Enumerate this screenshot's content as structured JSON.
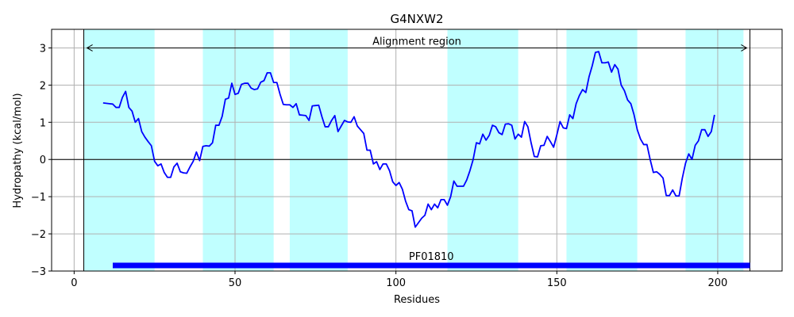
{
  "chart_data": {
    "type": "line",
    "title": "G4NXW2",
    "xlabel": "Residues",
    "ylabel": "Hydropathy (kcal/mol)",
    "xlim": [
      -7,
      220
    ],
    "ylim": [
      -3,
      3.5
    ],
    "xticks": [
      0,
      50,
      100,
      150,
      200
    ],
    "yticks": [
      -3,
      -2,
      -1,
      0,
      1,
      2,
      3
    ],
    "grid": true,
    "colors": {
      "line": "#0000ff",
      "band": "#c0ffff",
      "domain_bar": "#0000ff",
      "grid": "#b0b0b0"
    },
    "series": [
      {
        "x": [
          9,
          10,
          11,
          12,
          13,
          14,
          15,
          16,
          17,
          18,
          19,
          20,
          21,
          22,
          23,
          24,
          25,
          26,
          27,
          28,
          29,
          30,
          31,
          32,
          33,
          34,
          35,
          36,
          37,
          38,
          39,
          40,
          41,
          42,
          43,
          44,
          45,
          46,
          47,
          48,
          49,
          50,
          51,
          52,
          53,
          54,
          55,
          56,
          57,
          58,
          59,
          60,
          61,
          62,
          63,
          64,
          65,
          66,
          67,
          68,
          69,
          70,
          71,
          72,
          73,
          74,
          75,
          76,
          77,
          78,
          79,
          80,
          81,
          82,
          83,
          84,
          85,
          86,
          87,
          88,
          89,
          90,
          91,
          92,
          93,
          94,
          95,
          96,
          97,
          98,
          99,
          100,
          101,
          102,
          103,
          104,
          105,
          106,
          107,
          108,
          109,
          110,
          111,
          112,
          113,
          114,
          115,
          116,
          117,
          118,
          119,
          120,
          121,
          122,
          123,
          124,
          125,
          126,
          127,
          128,
          129,
          130,
          131,
          132,
          133,
          134,
          135,
          136,
          137,
          138,
          139,
          140,
          141,
          142,
          143,
          144,
          145,
          146,
          147,
          148,
          149,
          150,
          151,
          152,
          153,
          154,
          155,
          156,
          157,
          158,
          159,
          160,
          161,
          162,
          163,
          164,
          165,
          166,
          167,
          168,
          169,
          170,
          171,
          172,
          173,
          174,
          175,
          176,
          177,
          178,
          179,
          180,
          181,
          182,
          183,
          184,
          185,
          186,
          187,
          188,
          189,
          190,
          191,
          192,
          193,
          194,
          195,
          196,
          197,
          198,
          199
        ],
        "values": [
          1.52,
          1.51,
          1.5,
          1.49,
          1.4,
          1.4,
          1.67,
          1.83,
          1.4,
          1.3,
          1.0,
          1.1,
          0.75,
          0.6,
          0.48,
          0.37,
          -0.05,
          -0.17,
          -0.12,
          -0.35,
          -0.48,
          -0.48,
          -0.2,
          -0.1,
          -0.33,
          -0.36,
          -0.37,
          -0.2,
          -0.05,
          0.2,
          -0.03,
          0.35,
          0.37,
          0.36,
          0.45,
          0.92,
          0.92,
          1.16,
          1.62,
          1.65,
          2.05,
          1.75,
          1.78,
          2.02,
          2.05,
          2.05,
          1.92,
          1.88,
          1.9,
          2.08,
          2.12,
          2.33,
          2.33,
          2.07,
          2.07,
          1.75,
          1.48,
          1.47,
          1.47,
          1.4,
          1.5,
          1.2,
          1.19,
          1.18,
          1.05,
          1.44,
          1.45,
          1.46,
          1.15,
          0.88,
          0.88,
          1.05,
          1.18,
          0.75,
          0.9,
          1.05,
          1.01,
          1.0,
          1.15,
          0.9,
          0.8,
          0.7,
          0.25,
          0.25,
          -0.12,
          -0.06,
          -0.27,
          -0.12,
          -0.12,
          -0.3,
          -0.6,
          -0.7,
          -0.62,
          -0.8,
          -1.12,
          -1.35,
          -1.38,
          -1.82,
          -1.7,
          -1.58,
          -1.5,
          -1.2,
          -1.35,
          -1.2,
          -1.3,
          -1.08,
          -1.08,
          -1.23,
          -1.0,
          -0.58,
          -0.72,
          -0.72,
          -0.72,
          -0.55,
          -0.3,
          0.0,
          0.45,
          0.42,
          0.68,
          0.52,
          0.65,
          0.92,
          0.88,
          0.72,
          0.67,
          0.95,
          0.96,
          0.92,
          0.55,
          0.68,
          0.6,
          1.02,
          0.88,
          0.45,
          0.08,
          0.07,
          0.37,
          0.38,
          0.62,
          0.48,
          0.33,
          0.66,
          1.02,
          0.85,
          0.83,
          1.2,
          1.1,
          1.5,
          1.72,
          1.88,
          1.8,
          2.22,
          2.52,
          2.88,
          2.9,
          2.6,
          2.6,
          2.62,
          2.35,
          2.55,
          2.43,
          2.0,
          1.85,
          1.6,
          1.5,
          1.2,
          0.8,
          0.55,
          0.4,
          0.4,
          0.0,
          -0.35,
          -0.33,
          -0.4,
          -0.5,
          -0.97,
          -0.97,
          -0.82,
          -0.98,
          -0.98,
          -0.5,
          -0.1,
          0.15,
          0.0,
          0.38,
          0.5,
          0.8,
          0.8,
          0.62,
          0.75,
          1.2
        ]
      }
    ],
    "bands": [
      [
        3,
        25
      ],
      [
        40,
        62
      ],
      [
        67,
        85
      ],
      [
        116,
        138
      ],
      [
        153,
        175
      ],
      [
        190,
        208
      ]
    ],
    "vlines": [
      3,
      210
    ],
    "annotations": {
      "alignment_label": "Alignment region",
      "alignment_range": [
        4,
        209
      ],
      "alignment_y": 3.0,
      "domain_label": "PF01810",
      "domain_range": [
        12,
        210
      ],
      "domain_y": -2.85
    }
  }
}
